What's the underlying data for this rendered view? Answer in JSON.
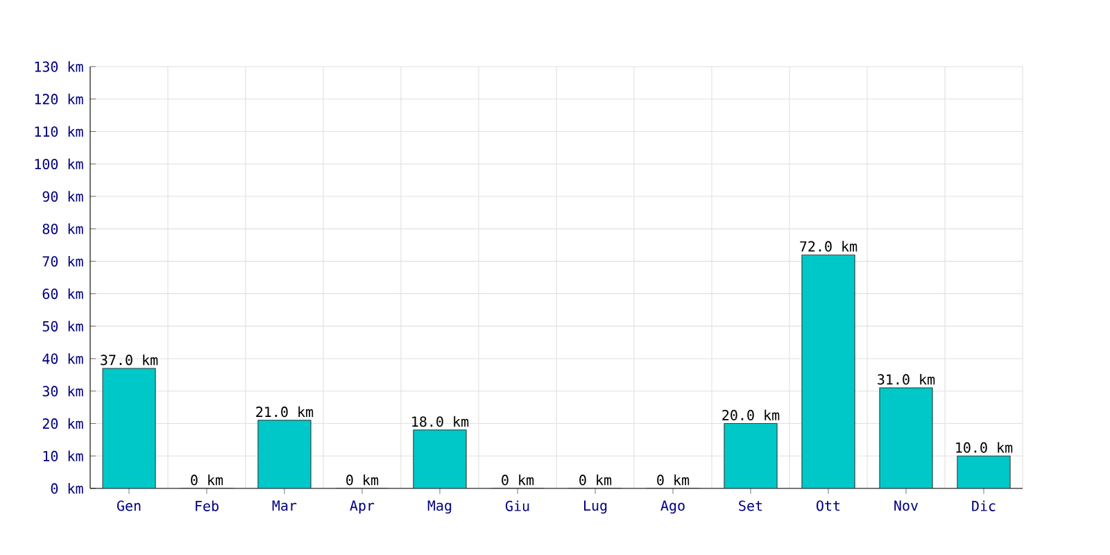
{
  "chart_data": {
    "type": "bar",
    "categories": [
      "Gen",
      "Feb",
      "Mar",
      "Apr",
      "Mag",
      "Giu",
      "Lug",
      "Ago",
      "Set",
      "Ott",
      "Nov",
      "Dic"
    ],
    "values": [
      37,
      0,
      21,
      0,
      18,
      0,
      0,
      0,
      20,
      72,
      31,
      10
    ],
    "value_labels": [
      "37.0 km",
      "0 km",
      "21.0 km",
      "0 km",
      "18.0 km",
      "0 km",
      "0 km",
      "0 km",
      "20.0 km",
      "72.0 km",
      "31.0 km",
      "10.0 km"
    ],
    "color": "#00c8c8",
    "ylim": [
      0,
      130
    ],
    "yticks": [
      {
        "value": 0,
        "label": "0 km"
      },
      {
        "value": 10,
        "label": "10 km"
      },
      {
        "value": 20,
        "label": "20 km"
      },
      {
        "value": 30,
        "label": "30 km"
      },
      {
        "value": 40,
        "label": "40 km"
      },
      {
        "value": 50,
        "label": "50 km"
      },
      {
        "value": 60,
        "label": "60 km"
      },
      {
        "value": 70,
        "label": "70 km"
      },
      {
        "value": 80,
        "label": "80 km"
      },
      {
        "value": 90,
        "label": "90 km"
      },
      {
        "value": 100,
        "label": "100 km"
      },
      {
        "value": 110,
        "label": "110 km"
      },
      {
        "value": 120,
        "label": "120 km"
      },
      {
        "value": 130,
        "label": "130 km"
      }
    ],
    "grid": true
  }
}
